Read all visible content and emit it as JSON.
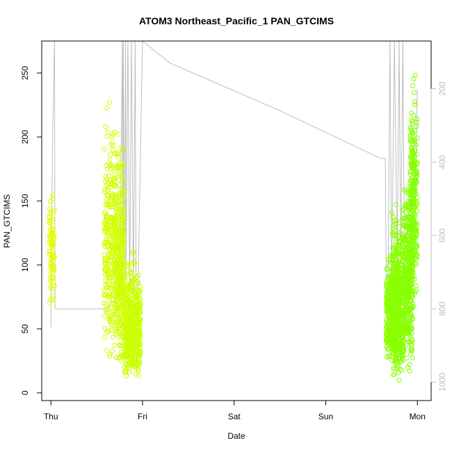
{
  "chart_data": {
    "type": "scatter",
    "title": "ATOM3 Northeast_Pacific_1 PAN_GTCIMS",
    "xlabel": "Date",
    "ylabel": "PAN_GTCIMS",
    "x_ticks": [
      "Thu",
      "Fri",
      "Sat",
      "Sun",
      "Mon"
    ],
    "xlim": [
      -0.1,
      4.15
    ],
    "ylim": [
      -6,
      275
    ],
    "y_ticks": [
      0,
      50,
      100,
      150,
      200,
      250
    ],
    "y2_label": "",
    "y2_ticks": [
      200,
      400,
      600,
      800,
      1000
    ],
    "y2lim": [
      70,
      1050
    ],
    "y2_inverted": true,
    "marker_colors": {
      "early": "#dfff00",
      "late": "#84ff00"
    },
    "altitude_line_color": "#bdbdbd",
    "series": [
      {
        "clusters": [
          {
            "x_range": [
              -0.02,
              0.04
            ],
            "y_range": [
              62,
              172
            ],
            "count": 90
          },
          {
            "x_range": [
              0.58,
              0.7
            ],
            "y_range": [
              20,
              256
            ],
            "count": 260
          },
          {
            "x_range": [
              0.7,
              0.8
            ],
            "y_range": [
              10,
              220
            ],
            "count": 380
          },
          {
            "x_range": [
              0.8,
              0.98
            ],
            "y_range": [
              3,
              120
            ],
            "count": 520
          },
          {
            "x_range": [
              3.66,
              3.78
            ],
            "y_range": [
              20,
              120
            ],
            "count": 380
          },
          {
            "x_range": [
              3.72,
              3.85
            ],
            "y_range": [
              5,
              160
            ],
            "count": 520
          },
          {
            "x_range": [
              3.85,
              3.95
            ],
            "y_range": [
              10,
              200
            ],
            "count": 380
          },
          {
            "x_range": [
              3.92,
              4.0
            ],
            "y_range": [
              60,
              265
            ],
            "count": 280
          }
        ]
      },
      {
        "altitude": [
          [
            0.0,
            850
          ],
          [
            0.015,
            400
          ],
          [
            0.03,
            180
          ],
          [
            0.04,
            70
          ],
          [
            0.045,
            800
          ],
          [
            0.3,
            800
          ],
          [
            0.62,
            800
          ],
          [
            0.66,
            780
          ],
          [
            0.7,
            780
          ],
          [
            0.72,
            770
          ],
          [
            0.75,
            760
          ],
          [
            0.78,
            70
          ],
          [
            0.785,
            740
          ],
          [
            0.79,
            70
          ],
          [
            0.8,
            700
          ],
          [
            0.815,
            70
          ],
          [
            0.82,
            720
          ],
          [
            0.84,
            70
          ],
          [
            0.86,
            740
          ],
          [
            0.88,
            70
          ],
          [
            0.9,
            760
          ],
          [
            0.92,
            70
          ],
          [
            0.93,
            760
          ],
          [
            0.95,
            760
          ],
          [
            1.0,
            70
          ],
          [
            1.3,
            130
          ],
          [
            2.5,
            260
          ],
          [
            3.6,
            390
          ],
          [
            3.65,
            390
          ],
          [
            3.66,
            720
          ],
          [
            3.68,
            720
          ],
          [
            3.7,
            70
          ],
          [
            3.72,
            700
          ],
          [
            3.75,
            70
          ],
          [
            3.78,
            690
          ],
          [
            3.8,
            70
          ],
          [
            3.82,
            680
          ],
          [
            3.84,
            70
          ],
          [
            3.86,
            700
          ],
          [
            3.88,
            720
          ],
          [
            3.9,
            760
          ],
          [
            3.92,
            760
          ],
          [
            3.95,
            700
          ],
          [
            3.98,
            500
          ],
          [
            4.0,
            200
          ]
        ]
      }
    ]
  }
}
